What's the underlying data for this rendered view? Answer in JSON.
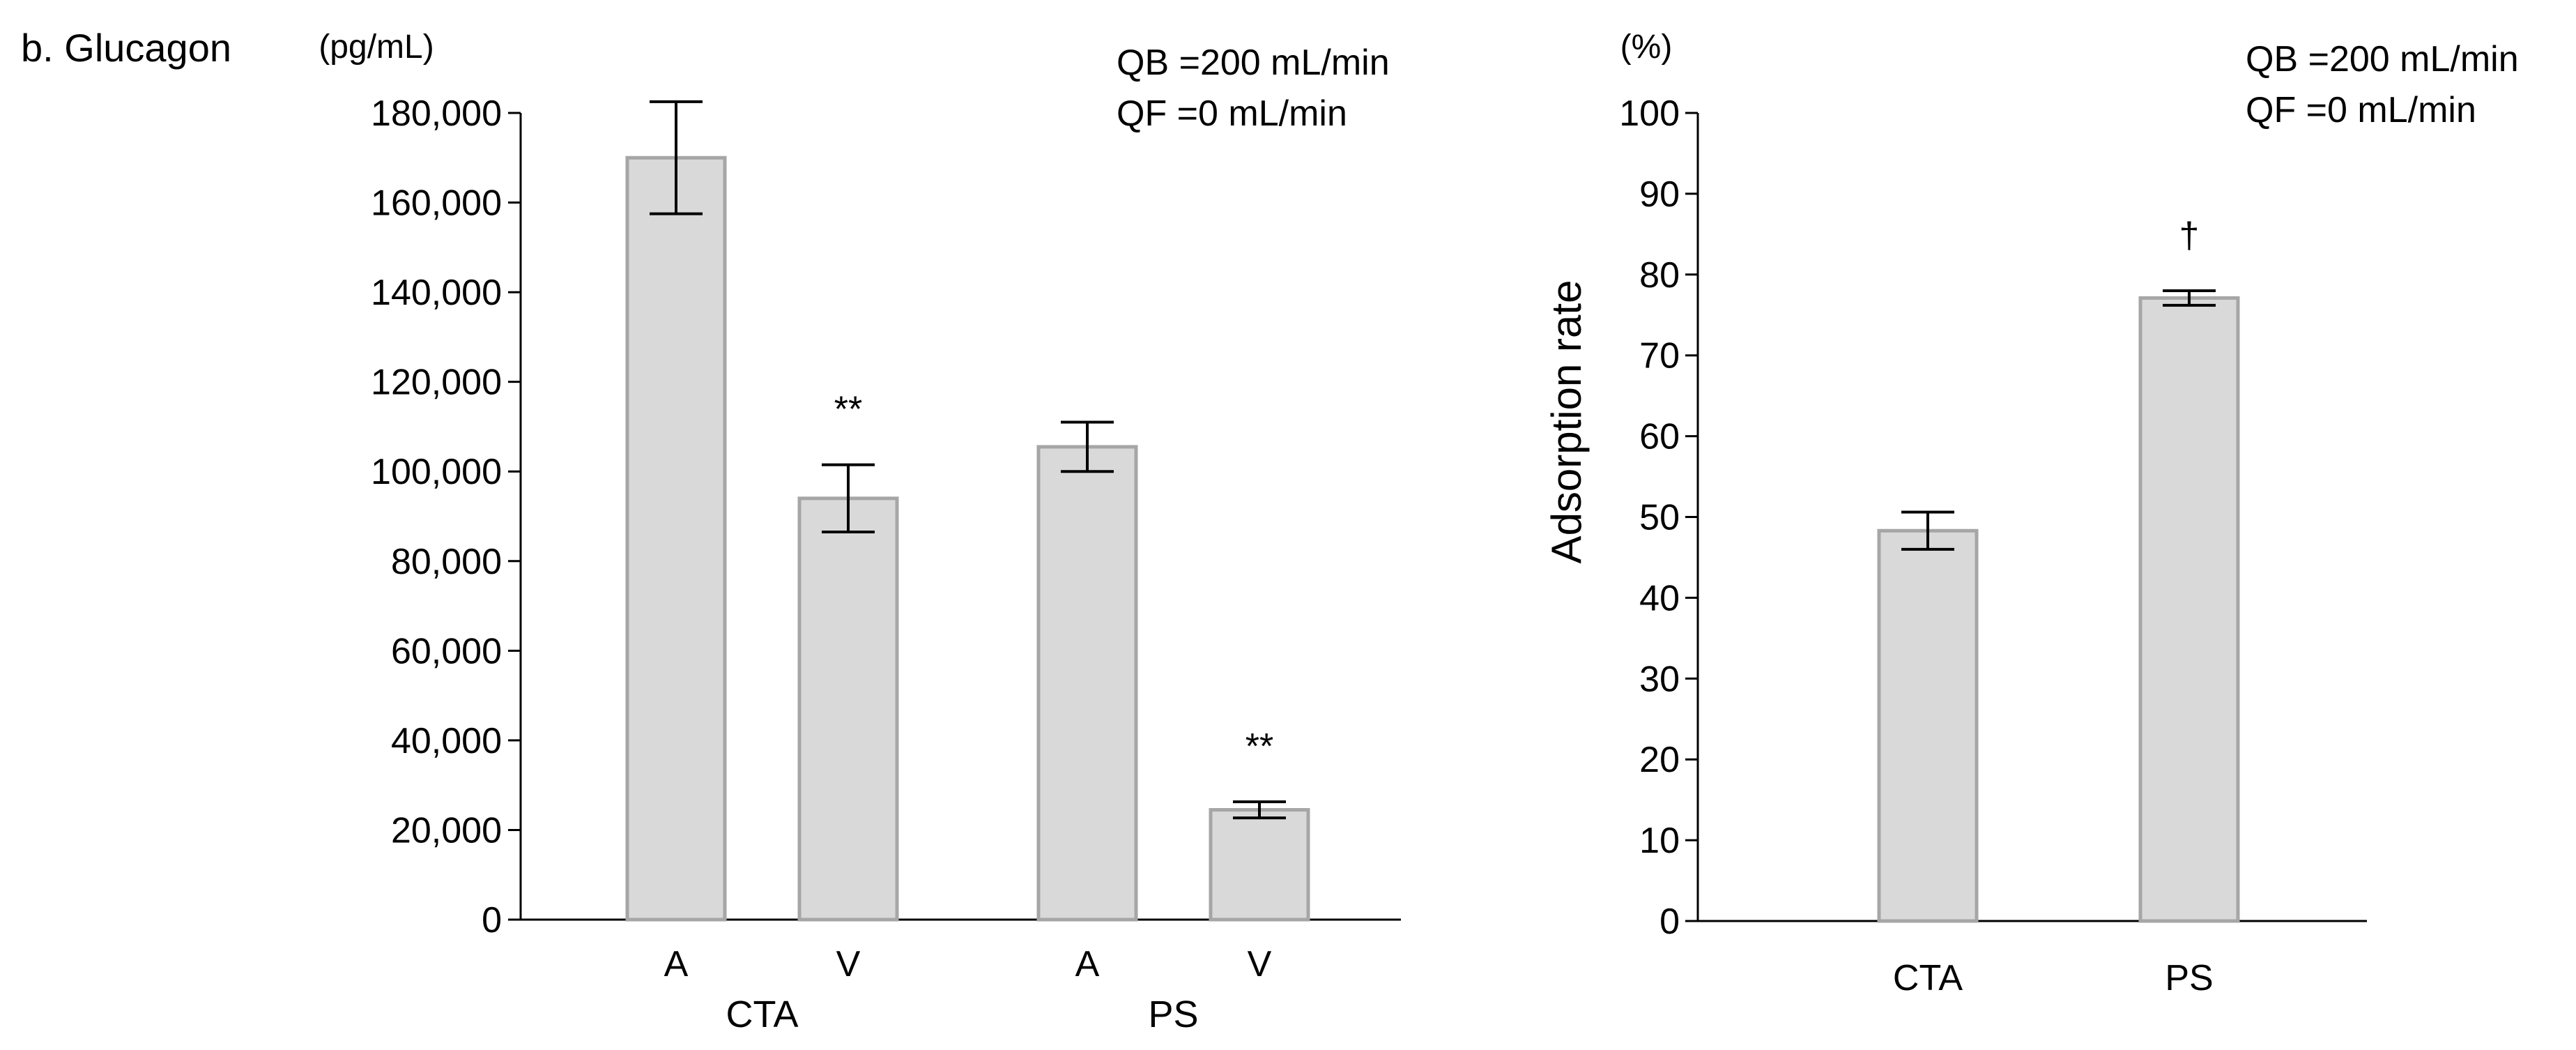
{
  "panel_label": "b. Glucagon",
  "colors": {
    "bar_fill": "#d9d9d9",
    "bar_stroke": "#a6a6a6",
    "axis": "#000000"
  },
  "chart_data": [
    {
      "type": "bar",
      "title": "b. Glucagon",
      "unit_label": "(pg/mL)",
      "ylabel": "",
      "ylim": [
        0,
        180000
      ],
      "yticks": [
        0,
        20000,
        40000,
        60000,
        80000,
        100000,
        120000,
        140000,
        160000,
        180000
      ],
      "ytick_labels": [
        "0",
        "20,000",
        "40,000",
        "60,000",
        "80,000",
        "100,000",
        "120,000",
        "140,000",
        "160,000",
        "180,000"
      ],
      "categories": [
        "A",
        "V",
        "A",
        "V"
      ],
      "groups": [
        {
          "label": "CTA",
          "members": [
            0,
            1
          ]
        },
        {
          "label": "PS",
          "members": [
            2,
            3
          ]
        }
      ],
      "values": [
        170000,
        94000,
        105500,
        24500
      ],
      "errors": [
        12500,
        7500,
        5500,
        1800
      ],
      "annotations": [
        "",
        "**",
        "",
        "**"
      ],
      "conditions": [
        "QB =200 mL/min",
        "QF =0 mL/min"
      ],
      "grid": false
    },
    {
      "type": "bar",
      "title": "",
      "unit_label": "(%)",
      "ylabel": "Adsorption rate",
      "ylim": [
        0,
        100
      ],
      "yticks": [
        0,
        10,
        20,
        30,
        40,
        50,
        60,
        70,
        80,
        90,
        100
      ],
      "ytick_labels": [
        "0",
        "10",
        "20",
        "30",
        "40",
        "50",
        "60",
        "70",
        "80",
        "90",
        "100"
      ],
      "categories": [
        "CTA",
        "PS"
      ],
      "values": [
        48.3,
        77.1
      ],
      "errors": [
        2.3,
        0.9
      ],
      "annotations": [
        "",
        "†"
      ],
      "conditions": [
        "QB =200 mL/min",
        "QF =0 mL/min"
      ],
      "grid": false
    }
  ]
}
